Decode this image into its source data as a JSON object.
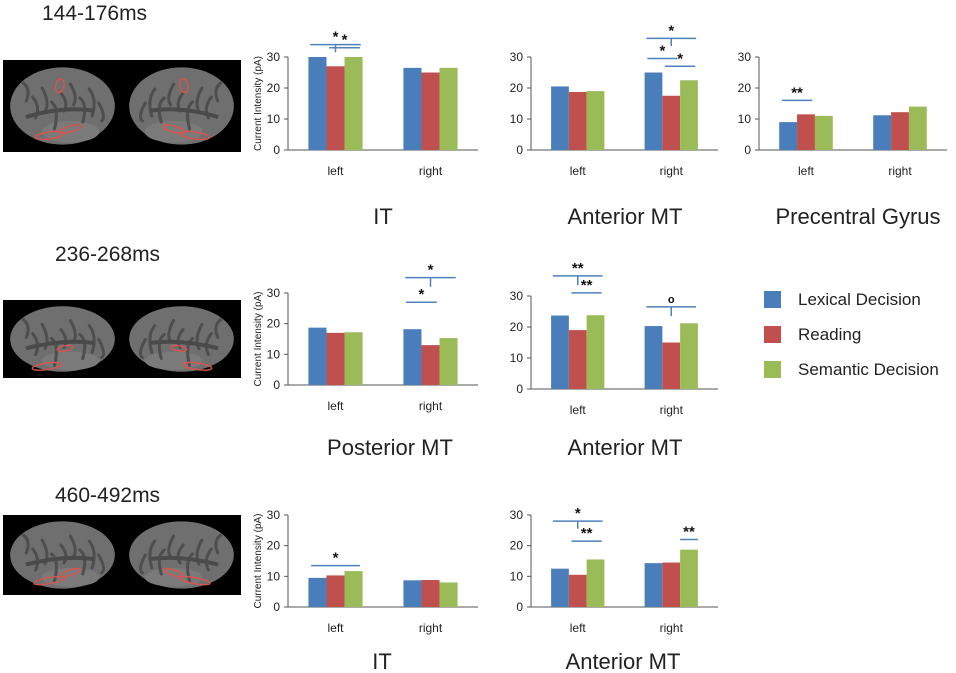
{
  "time_windows": [
    "144-176ms",
    "236-268ms",
    "460-492ms"
  ],
  "colors": {
    "lexical": "#4a7ebb",
    "reading": "#c0504d",
    "semantic": "#9bbb59",
    "bracket": "#4f81bd",
    "axis": "#555555"
  },
  "ylabel_text": "Current Intensity (pA)",
  "legend": {
    "items": [
      {
        "label": "Lexical Decision",
        "color": "#4a7ebb"
      },
      {
        "label": "Reading",
        "color": "#c0504d"
      },
      {
        "label": "Semantic Decision",
        "color": "#9bbb59"
      }
    ]
  },
  "chart_data": [
    {
      "type": "bar",
      "title": "IT",
      "time_window": "144-176ms",
      "ylabel": "Current Intensity (pA)",
      "ylim": [
        0,
        30
      ],
      "yticks": [
        0,
        10,
        20,
        30
      ],
      "categories": [
        "left",
        "right"
      ],
      "series": [
        {
          "name": "Lexical Decision",
          "values": [
            30,
            26.5
          ]
        },
        {
          "name": "Reading",
          "values": [
            27,
            25
          ]
        },
        {
          "name": "Semantic Decision",
          "values": [
            30,
            26.5
          ]
        }
      ],
      "annotations": [
        {
          "label": "*",
          "type": "group",
          "cat": 0,
          "from": 0,
          "to": 2,
          "y": 34,
          "stem": 31.5
        },
        {
          "label": "*",
          "type": "pair",
          "cat": 0,
          "from": 1,
          "to": 2,
          "y": 33
        }
      ]
    },
    {
      "type": "bar",
      "title": "Anterior MT",
      "time_window": "144-176ms",
      "ylabel": "",
      "ylim": [
        0,
        30
      ],
      "yticks": [
        0,
        10,
        20,
        30
      ],
      "categories": [
        "left",
        "right"
      ],
      "series": [
        {
          "name": "Lexical Decision",
          "values": [
            20.5,
            25
          ]
        },
        {
          "name": "Reading",
          "values": [
            18.7,
            17.5
          ]
        },
        {
          "name": "Semantic Decision",
          "values": [
            19,
            22.5
          ]
        }
      ],
      "annotations": [
        {
          "label": "*",
          "type": "group",
          "cat": 1,
          "from": 0,
          "to": 2,
          "y": 36,
          "stem": 33.5
        },
        {
          "label": "*",
          "type": "pair",
          "cat": 1,
          "from": 0,
          "to": 1,
          "y": 29.5
        },
        {
          "label": "*",
          "type": "pair",
          "cat": 1,
          "from": 1,
          "to": 2,
          "y": 27
        }
      ]
    },
    {
      "type": "bar",
      "title": "Precentral Gyrus",
      "time_window": "144-176ms",
      "ylabel": "",
      "ylim": [
        0,
        30
      ],
      "yticks": [
        0,
        10,
        20,
        30
      ],
      "categories": [
        "left",
        "right"
      ],
      "series": [
        {
          "name": "Lexical Decision",
          "values": [
            9,
            11.2
          ]
        },
        {
          "name": "Reading",
          "values": [
            11.5,
            12.2
          ]
        },
        {
          "name": "Semantic Decision",
          "values": [
            11,
            14
          ]
        }
      ],
      "annotations": [
        {
          "label": "**",
          "type": "pair",
          "cat": 0,
          "from": 0,
          "to": 1,
          "y": 16
        }
      ]
    },
    {
      "type": "bar",
      "title": "Posterior MT",
      "time_window": "236-268ms",
      "ylabel": "Current Intensity (pA)",
      "ylim": [
        0,
        30
      ],
      "yticks": [
        0,
        10,
        20,
        30
      ],
      "categories": [
        "left",
        "right"
      ],
      "series": [
        {
          "name": "Lexical Decision",
          "values": [
            18.7,
            18.2
          ]
        },
        {
          "name": "Reading",
          "values": [
            17,
            13
          ]
        },
        {
          "name": "Semantic Decision",
          "values": [
            17.2,
            15.3
          ]
        }
      ],
      "annotations": [
        {
          "label": "*",
          "type": "group",
          "cat": 1,
          "from": 0,
          "to": 2,
          "y": 35,
          "stem": 32
        },
        {
          "label": "*",
          "type": "pair",
          "cat": 1,
          "from": 0,
          "to": 1,
          "y": 27
        }
      ]
    },
    {
      "type": "bar",
      "title": "Anterior MT",
      "time_window": "236-268ms",
      "ylabel": "",
      "ylim": [
        0,
        30
      ],
      "yticks": [
        0,
        10,
        20,
        30
      ],
      "categories": [
        "left",
        "right"
      ],
      "series": [
        {
          "name": "Lexical Decision",
          "values": [
            23.7,
            20.3
          ]
        },
        {
          "name": "Reading",
          "values": [
            19,
            15
          ]
        },
        {
          "name": "Semantic Decision",
          "values": [
            23.8,
            21.2
          ]
        }
      ],
      "annotations": [
        {
          "label": "**",
          "type": "group",
          "cat": 0,
          "from": 0,
          "to": 2,
          "y": 36.5,
          "stem": 33.5
        },
        {
          "label": "**",
          "type": "pair",
          "cat": 0,
          "from": 1,
          "to": 2,
          "y": 31
        },
        {
          "label": "o",
          "type": "group",
          "cat": 1,
          "from": 0,
          "to": 2,
          "y": 26.5,
          "stem": 23.5
        }
      ]
    },
    {
      "type": "bar",
      "title": "IT",
      "time_window": "460-492ms",
      "ylabel": "Current Intensity (pA)",
      "ylim": [
        0,
        30
      ],
      "yticks": [
        0,
        10,
        20,
        30
      ],
      "categories": [
        "left",
        "right"
      ],
      "series": [
        {
          "name": "Lexical Decision",
          "values": [
            9.5,
            8.7
          ]
        },
        {
          "name": "Reading",
          "values": [
            10.3,
            8.8
          ]
        },
        {
          "name": "Semantic Decision",
          "values": [
            11.7,
            8
          ]
        }
      ],
      "annotations": [
        {
          "label": "*",
          "type": "pair",
          "cat": 0,
          "from": 0,
          "to": 2,
          "y": 13.5
        }
      ]
    },
    {
      "type": "bar",
      "title": "Anterior MT",
      "time_window": "460-492ms",
      "ylabel": "",
      "ylim": [
        0,
        30
      ],
      "yticks": [
        0,
        10,
        20,
        30
      ],
      "categories": [
        "left",
        "right"
      ],
      "series": [
        {
          "name": "Lexical Decision",
          "values": [
            12.5,
            14.3
          ]
        },
        {
          "name": "Reading",
          "values": [
            10.5,
            14.5
          ]
        },
        {
          "name": "Semantic Decision",
          "values": [
            15.5,
            18.7
          ]
        }
      ],
      "annotations": [
        {
          "label": "*",
          "type": "group",
          "cat": 0,
          "from": 0,
          "to": 2,
          "y": 28,
          "stem": 25.5
        },
        {
          "label": "**",
          "type": "pair",
          "cat": 0,
          "from": 1,
          "to": 2,
          "y": 21.5
        },
        {
          "label": "**",
          "type": "pair",
          "cat": 1,
          "from": 2,
          "to": 2,
          "y": 22
        }
      ]
    }
  ]
}
